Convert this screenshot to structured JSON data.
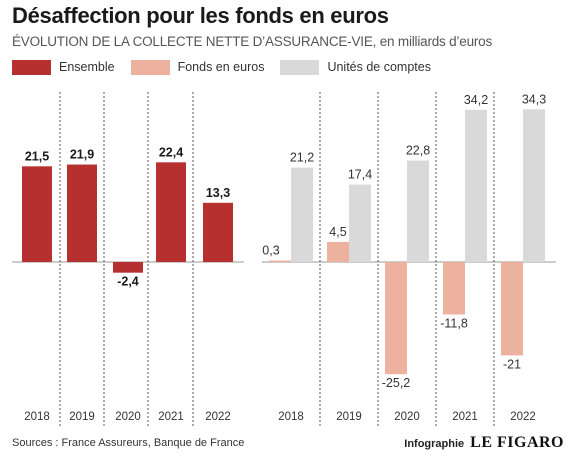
{
  "header": {
    "title": "Désaffection pour les fonds en euros",
    "subtitle": "ÉVOLUTION DE LA COLLECTE NETTE D’ASSURANCE-VIE, en milliards d’euros"
  },
  "legend": [
    {
      "label": "Ensemble",
      "color": "#b5302f"
    },
    {
      "label": "Fonds en euros",
      "color": "#edb29f"
    },
    {
      "label": "Unités de comptes",
      "color": "#d9d9d9"
    }
  ],
  "footer": {
    "sources": "Sources : France Assureurs, Banque de France",
    "infographie": "Infographie",
    "brand": "LE FIGARO"
  },
  "chart_data": [
    {
      "type": "bar",
      "categories": [
        "2018",
        "2019",
        "2020",
        "2021",
        "2022"
      ],
      "series": [
        {
          "name": "Ensemble",
          "color": "#b5302f",
          "values": [
            21.5,
            21.9,
            -2.4,
            22.4,
            13.3
          ],
          "labels": [
            "21,5",
            "21,9",
            "-2,4",
            "22,4",
            "13,3"
          ]
        }
      ]
    },
    {
      "type": "bar",
      "categories": [
        "2018",
        "2019",
        "2020",
        "2021",
        "2022"
      ],
      "series": [
        {
          "name": "Fonds en euros",
          "color": "#edb29f",
          "values": [
            0.3,
            4.5,
            -25.2,
            -11.8,
            -21
          ],
          "labels": [
            "0,3",
            "4,5",
            "-25,2",
            "-11,8",
            "-21"
          ]
        },
        {
          "name": "Unités de comptes",
          "color": "#d9d9d9",
          "values": [
            21.2,
            17.4,
            22.8,
            34.2,
            34.3
          ],
          "labels": [
            "21,2",
            "17,4",
            "22,8",
            "34,2",
            "34,3"
          ]
        }
      ]
    }
  ]
}
